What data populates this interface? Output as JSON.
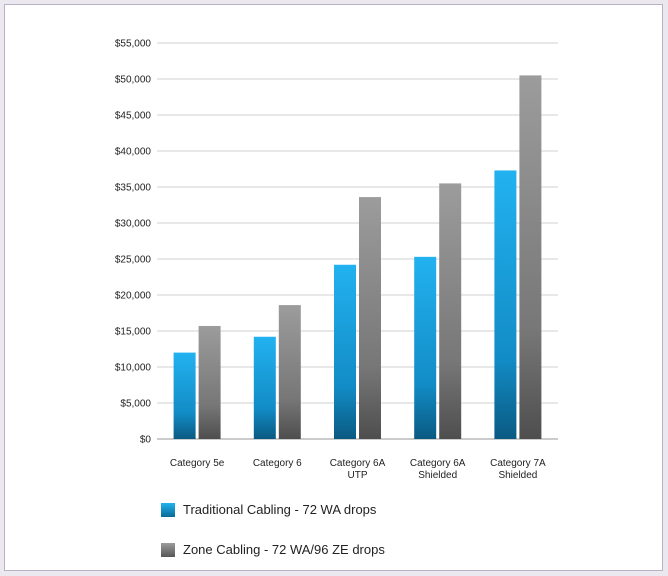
{
  "chart_data": {
    "type": "bar",
    "title": "",
    "xlabel": "",
    "ylabel": "",
    "categories": [
      [
        "Category 5e"
      ],
      [
        "Category 6"
      ],
      [
        "Category 6A",
        "UTP"
      ],
      [
        "Category 6A",
        "Shielded"
      ],
      [
        "Category 7A",
        "Shielded"
      ]
    ],
    "series": [
      {
        "name": "Traditional Cabling - 72 WA drops",
        "values": [
          12000,
          14200,
          24200,
          25300,
          37300
        ],
        "color": "#1aa0e0"
      },
      {
        "name": "Zone Cabling - 72 WA/96 ZE drops",
        "values": [
          15700,
          18600,
          33600,
          35500,
          50500
        ],
        "color": "#8a8a8a"
      }
    ],
    "yticks": [
      0,
      5000,
      10000,
      15000,
      20000,
      25000,
      30000,
      35000,
      40000,
      45000,
      50000,
      55000
    ],
    "ytick_labels": [
      "$0",
      "$5,000",
      "$10,000",
      "$15,000",
      "$20,000",
      "$25,000",
      "$30,000",
      "$35,000",
      "$40,000",
      "$45,000",
      "$50,000",
      "$55,000"
    ],
    "ylim": [
      0,
      55000
    ],
    "grid": true,
    "legend_placement": "bottom"
  }
}
